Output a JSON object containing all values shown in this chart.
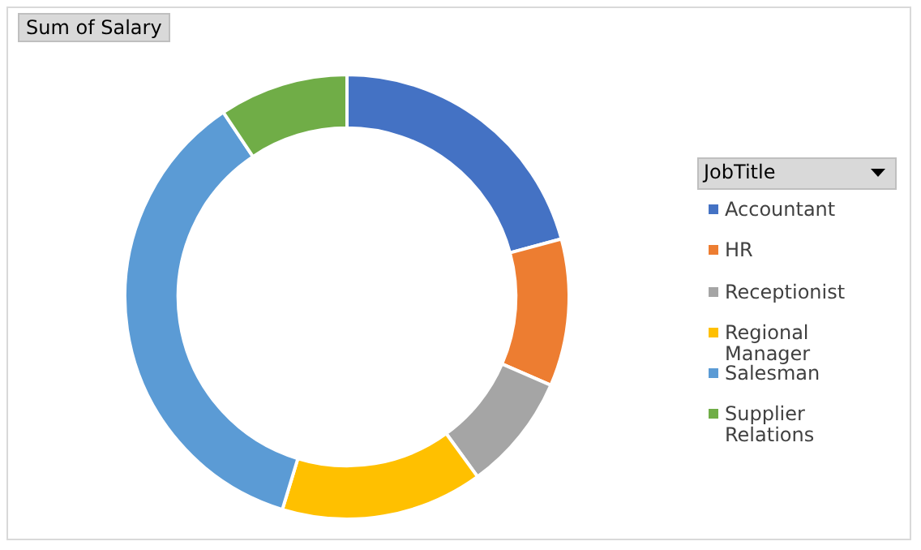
{
  "chart_data": {
    "type": "donut",
    "title": "Sum of Salary",
    "legend_title": "JobTitle",
    "legend": "right",
    "categories": [
      "Accountant",
      "HR",
      "Receptionist",
      "Regional Manager",
      "Salesman",
      "Supplier Relations"
    ],
    "values": [
      20.8,
      10.7,
      8.5,
      14.7,
      35.9,
      9.4
    ],
    "colors": [
      "#4472c4",
      "#ed7d31",
      "#a5a5a5",
      "#ffc000",
      "#5b9bd5",
      "#70ad47"
    ]
  }
}
